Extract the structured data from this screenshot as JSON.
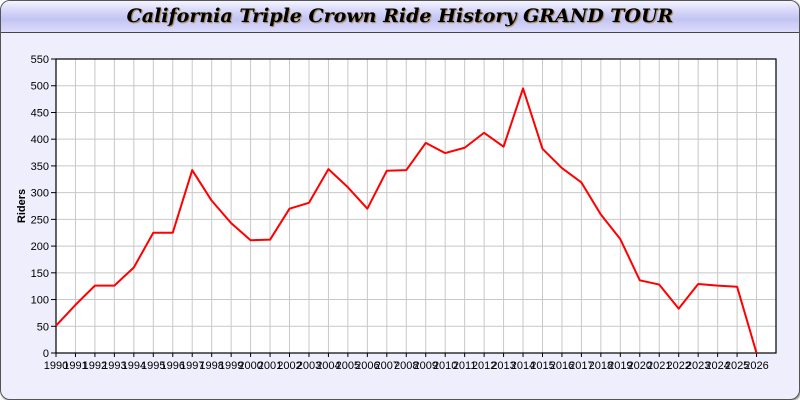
{
  "chart_data": {
    "type": "line",
    "title": "California Triple Crown Ride History GRAND TOUR",
    "xlabel": "",
    "ylabel": "Riders",
    "xlim": [
      1990,
      2027
    ],
    "ylim": [
      0,
      550
    ],
    "yticks": [
      0,
      50,
      100,
      150,
      200,
      250,
      300,
      350,
      400,
      450,
      500,
      550
    ],
    "grid": true,
    "line_color": "#ff0000",
    "x": [
      1990,
      1991,
      1992,
      1993,
      1994,
      1995,
      1996,
      1997,
      1998,
      1999,
      2000,
      2001,
      2002,
      2003,
      2004,
      2005,
      2006,
      2007,
      2008,
      2009,
      2010,
      2011,
      2012,
      2013,
      2014,
      2015,
      2016,
      2017,
      2018,
      2019,
      2020,
      2021,
      2022,
      2023,
      2024,
      2025,
      2026
    ],
    "series": [
      {
        "values": [
          51,
          90,
          126,
          126,
          160,
          225,
          225,
          342,
          285,
          243,
          211,
          212,
          270,
          281,
          344,
          310,
          270,
          341,
          342,
          393,
          374,
          384,
          412,
          386,
          495,
          382,
          346,
          319,
          259,
          213,
          136,
          128,
          83,
          129,
          126,
          124,
          0
        ]
      }
    ]
  }
}
